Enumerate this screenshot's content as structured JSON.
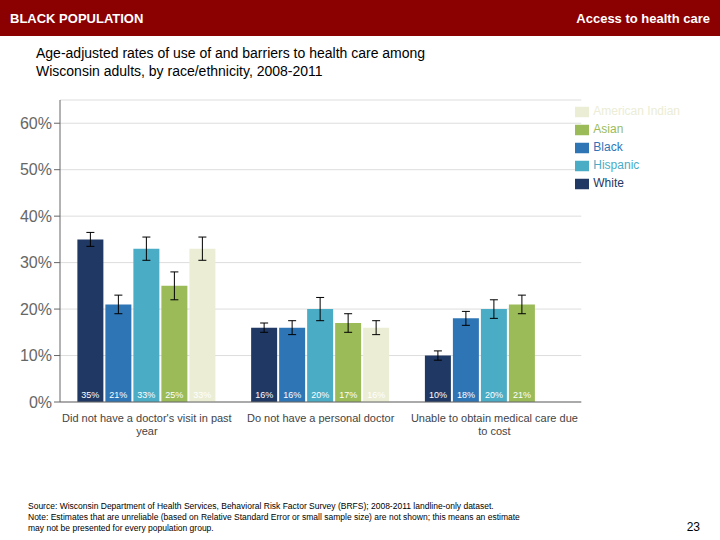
{
  "chart_data": {
    "type": "bar",
    "title": "Age-adjusted rates of use of and barriers to health care among\nWisconsin adults, by race/ethnicity, 2008-2011",
    "categories": [
      "Did not have a doctor's visit in past\nyear",
      "Do not have a personal doctor",
      "Unable to obtain medical care due\nto cost"
    ],
    "series": [
      {
        "name": "White",
        "color": "#1F3864",
        "values": [
          35,
          16,
          10
        ],
        "errors": [
          1.5,
          1.0,
          1.0
        ],
        "value_labels": [
          "35%",
          "16%",
          "10%"
        ]
      },
      {
        "name": "Black",
        "color": "#2E75B6",
        "values": [
          21,
          16,
          18
        ],
        "errors": [
          2.0,
          1.5,
          1.5
        ],
        "value_labels": [
          "21%",
          "16%",
          "18%"
        ]
      },
      {
        "name": "Hispanic",
        "color": "#4BACC6",
        "values": [
          33,
          20,
          20
        ],
        "errors": [
          2.5,
          2.5,
          2.0
        ],
        "value_labels": [
          "33%",
          "20%",
          "20%"
        ]
      },
      {
        "name": "Asian",
        "color": "#9BBB59",
        "values": [
          25,
          17,
          21
        ],
        "errors": [
          3.0,
          2.0,
          2.0
        ],
        "value_labels": [
          "25%",
          "17%",
          "21%"
        ]
      },
      {
        "name": "American Indian",
        "color": "#EBEDD5",
        "values": [
          33,
          16,
          null
        ],
        "errors": [
          2.5,
          1.5,
          null
        ],
        "value_labels": [
          "33%",
          "16%",
          null
        ]
      }
    ],
    "ylim": [
      0,
      65
    ],
    "yticks": [
      {
        "value": 0,
        "label": "0%"
      },
      {
        "value": 10,
        "label": "10%"
      },
      {
        "value": 20,
        "label": "20%"
      },
      {
        "value": 30,
        "label": "30%"
      },
      {
        "value": 40,
        "label": "40%"
      },
      {
        "value": 50,
        "label": "50%"
      },
      {
        "value": 60,
        "label": "60%"
      }
    ],
    "grid": true,
    "legend": "upper right",
    "data_labels": true,
    "annotations": [
      {
        "text": "BLACK POPULATION",
        "color": "#8B0000"
      },
      {
        "text": "Access to health care",
        "color": "#8B0000"
      },
      {
        "text": "Source: Wisconsin Department of Health Services, Behavioral Risk Factor Survey (BRFS); 2008-2011 landline-only dataset.\nNote: Estimates that are unreliable (based on Relative Standard Error or small sample size) are not shown; this means an estimate\nmay not be presented for every population group."
      },
      {
        "text": "23"
      }
    ]
  }
}
